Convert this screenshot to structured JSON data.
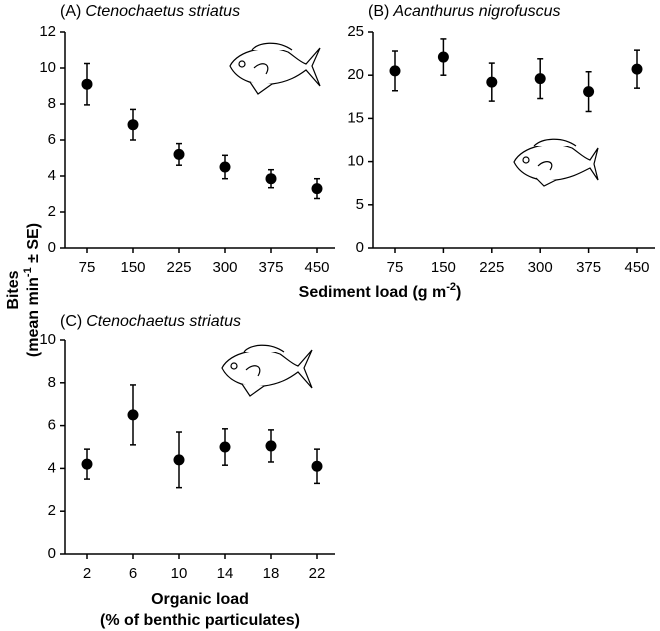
{
  "chart_data": [
    {
      "type": "scatter",
      "panel": "(A)",
      "title": "Ctenochaetus striatus",
      "categories": [
        75,
        150,
        225,
        300,
        375,
        450
      ],
      "values": [
        9.1,
        6.85,
        5.2,
        4.5,
        3.85,
        3.3
      ],
      "errors": [
        1.15,
        0.85,
        0.6,
        0.65,
        0.5,
        0.55
      ],
      "ylim": [
        0,
        12
      ],
      "yticks": [
        0,
        2,
        4,
        6,
        8,
        10,
        12
      ],
      "color": "#000000"
    },
    {
      "type": "scatter",
      "panel": "(B)",
      "title": "Acanthurus nigrofuscus",
      "categories": [
        75,
        150,
        225,
        300,
        375,
        450
      ],
      "values": [
        20.5,
        22.1,
        19.2,
        19.6,
        18.1,
        20.7
      ],
      "errors": [
        2.3,
        2.1,
        2.2,
        2.3,
        2.3,
        2.2
      ],
      "ylim": [
        0,
        25
      ],
      "yticks": [
        0,
        5,
        10,
        15,
        20,
        25
      ],
      "color": "#000000"
    },
    {
      "type": "scatter",
      "panel": "(C)",
      "title": "Ctenochaetus striatus",
      "categories": [
        2,
        6,
        10,
        14,
        18,
        22
      ],
      "values": [
        4.2,
        6.5,
        4.4,
        5.0,
        5.05,
        4.1
      ],
      "errors": [
        0.7,
        1.4,
        1.3,
        0.85,
        0.75,
        0.8
      ],
      "ylim": [
        0,
        10
      ],
      "yticks": [
        0,
        2,
        4,
        6,
        8,
        10
      ],
      "color": "#000000",
      "xlabel": [
        "Organic load",
        "(% of benthic particulates)"
      ]
    }
  ],
  "axis_labels": {
    "y": {
      "line1": "Bites",
      "line2": "(mean min",
      "sup": "-1",
      "tail": " ± SE)"
    },
    "sediment": {
      "text": "Sediment load (g m",
      "sup": "-2",
      "tail": ")"
    }
  }
}
